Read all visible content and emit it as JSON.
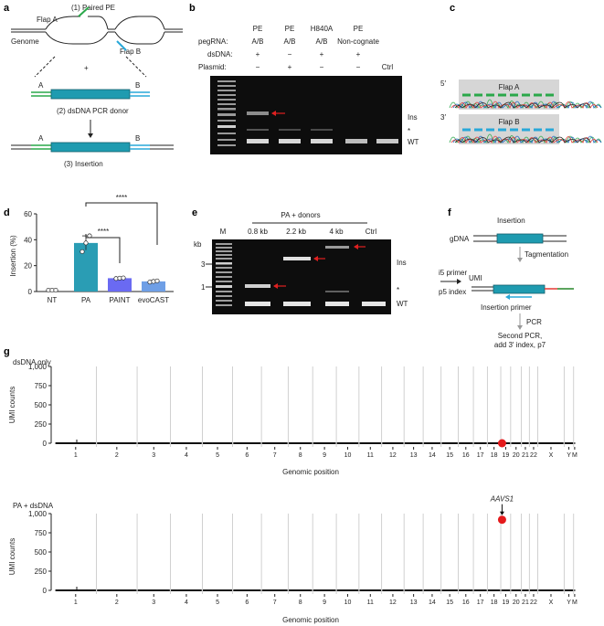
{
  "panel_letters": {
    "a": "a",
    "b": "b",
    "c": "c",
    "d": "d",
    "e": "e",
    "f": "f",
    "g": "g"
  },
  "panel_a": {
    "paired_pe": "(1) Paired PE",
    "flap_a": "Flap A",
    "flap_b": "Flap B",
    "genome": "Genome",
    "plus": "+",
    "end_a": "A",
    "end_b": "B",
    "donor": "(2) dsDNA PCR donor",
    "insertion": "(3) Insertion",
    "colors": {
      "flap_a": "#2aa84a",
      "flap_b": "#29a8d8",
      "donor": "#1f9bb0"
    }
  },
  "panel_b": {
    "row_labels": [
      "pegRNA:",
      "dsDNA:",
      "Plasmid:"
    ],
    "lanes": [
      {
        "top": "PE",
        "pegrna": "A/B",
        "dsdna": "+",
        "plasmid": "−"
      },
      {
        "top": "PE",
        "pegrna": "A/B",
        "dsdna": "−",
        "plasmid": "+"
      },
      {
        "top": "H840A",
        "pegrna": "A/B",
        "dsdna": "+",
        "plasmid": "−"
      },
      {
        "top": "PE",
        "pegrna": "Non-cognate",
        "dsdna": "+",
        "plasmid": "−"
      },
      {
        "top": "",
        "pegrna": "",
        "dsdna": "",
        "plasmid": "Ctrl"
      }
    ],
    "band_labels": {
      "ins": "Ins",
      "star": "*",
      "wt": "WT"
    }
  },
  "panel_c": {
    "five_prime": "5′",
    "three_prime": "3′",
    "flap_a": "Flap A",
    "flap_b": "Flap B"
  },
  "chart_data": [
    {
      "type": "bar",
      "panel": "d",
      "categories": [
        "NT",
        "PA",
        "PAINT",
        "evoCAST"
      ],
      "values": [
        0,
        37.5,
        10.3,
        7.8
      ],
      "errors": [
        0,
        5.5,
        0.4,
        0.8
      ],
      "points": [
        [
          0,
          0,
          0
        ],
        [
          30.8,
          37.5,
          43
        ],
        [
          10.0,
          10.3,
          10.5
        ],
        [
          7.3,
          7.8,
          8.2
        ]
      ],
      "colors": [
        "#9e9e9e",
        "#2a9db4",
        "#6a6af2",
        "#6f9fe6"
      ],
      "ylabel": "Insertion (%)",
      "ylim": [
        0,
        60
      ],
      "yticks": [
        0,
        20,
        40,
        60
      ],
      "significance": [
        "****",
        "****"
      ]
    },
    {
      "type": "scatter",
      "panel": "g-top",
      "title": "dsDNA only",
      "ylabel": "UMI counts",
      "xlabel": "Genomic position",
      "ylim": [
        0,
        1000
      ],
      "yticks": [
        "0",
        "250",
        "500",
        "750",
        "1,000"
      ],
      "chromosomes": [
        "1",
        "2",
        "3",
        "4",
        "5",
        "6",
        "7",
        "8",
        "9",
        "10",
        "11",
        "12",
        "13",
        "14",
        "15",
        "16",
        "17",
        "18",
        "19",
        "20",
        "21",
        "22",
        "X",
        "Y",
        "M"
      ],
      "highlight": {
        "chrom": "19",
        "value": 0
      }
    },
    {
      "type": "scatter",
      "panel": "g-bottom",
      "title": "PA + dsDNA",
      "ylabel": "UMI counts",
      "xlabel": "Genomic position",
      "ylim": [
        0,
        1000
      ],
      "yticks": [
        "0",
        "250",
        "500",
        "750",
        "1,000"
      ],
      "chromosomes": [
        "1",
        "2",
        "3",
        "4",
        "5",
        "6",
        "7",
        "8",
        "9",
        "10",
        "11",
        "12",
        "13",
        "14",
        "15",
        "16",
        "17",
        "18",
        "19",
        "20",
        "21",
        "22",
        "X",
        "Y",
        "M"
      ],
      "highlight": {
        "chrom": "19",
        "value": 920,
        "label": "AAVS1"
      }
    }
  ],
  "panel_e": {
    "header": "PA + donors",
    "lanes": [
      "M",
      "0.8 kb",
      "2.2 kb",
      "4 kb",
      "Ctrl"
    ],
    "kb_label": "kb",
    "kb_ticks": [
      "3",
      "1"
    ],
    "band_labels": {
      "ins": "Ins",
      "star": "*",
      "wt": "WT"
    }
  },
  "panel_f": {
    "insertion": "Insertion",
    "gdna": "gDNA",
    "tagmentation": "Tagmentation",
    "i5_primer": "i5 primer",
    "umi": "UMI",
    "p5_index": "p5 index",
    "insertion_primer": "Insertion primer",
    "pcr": "PCR",
    "second_pcr_1": "Second PCR,",
    "second_pcr_2": "add 3′ index, p7"
  }
}
